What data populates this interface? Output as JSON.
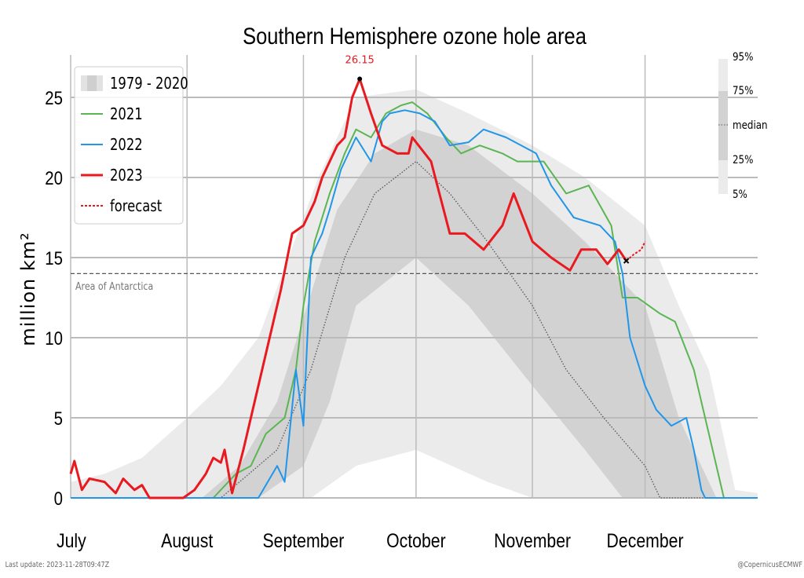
{
  "chart_data": {
    "type": "line",
    "title": "Southern Hemisphere ozone hole area",
    "ylabel": "million km²",
    "xlabel": "",
    "xlim": [
      "07-01",
      "12-31"
    ],
    "ylim": [
      -1.3,
      28.3
    ],
    "yticks": [
      0,
      5,
      10,
      15,
      20,
      25
    ],
    "xticks": [
      {
        "date": "07-01",
        "label": "July"
      },
      {
        "date": "08-01",
        "label": "August"
      },
      {
        "date": "09-01",
        "label": "September"
      },
      {
        "date": "10-01",
        "label": "October"
      },
      {
        "date": "11-01",
        "label": "November"
      },
      {
        "date": "12-01",
        "label": "December"
      }
    ],
    "grid": true,
    "reference_line": {
      "value": 14,
      "label": "Area of Antarctica"
    },
    "peak_annotation": {
      "date": "09-16",
      "value": 26.15,
      "label": "26.15"
    },
    "climatology": {
      "name": "1979 - 2020",
      "p95": [
        [
          "07-01",
          1
        ],
        [
          "07-10",
          1.5
        ],
        [
          "07-20",
          2.5
        ],
        [
          "08-01",
          5
        ],
        [
          "08-10",
          7
        ],
        [
          "08-20",
          10
        ],
        [
          "08-28",
          15
        ],
        [
          "09-05",
          20
        ],
        [
          "09-15",
          25
        ],
        [
          "10-01",
          25.5
        ],
        [
          "10-15",
          24
        ],
        [
          "11-01",
          22
        ],
        [
          "11-15",
          20
        ],
        [
          "12-01",
          17
        ],
        [
          "12-10",
          12
        ],
        [
          "12-18",
          8
        ],
        [
          "12-25",
          0.5
        ],
        [
          "12-31",
          0.3
        ]
      ],
      "p75": [
        [
          "07-01",
          0
        ],
        [
          "08-05",
          0
        ],
        [
          "08-15",
          2
        ],
        [
          "08-25",
          6
        ],
        [
          "09-02",
          12
        ],
        [
          "09-10",
          18
        ],
        [
          "09-20",
          21.5
        ],
        [
          "10-01",
          23
        ],
        [
          "10-15",
          22
        ],
        [
          "11-01",
          19
        ],
        [
          "11-15",
          16
        ],
        [
          "12-01",
          12
        ],
        [
          "12-10",
          5
        ],
        [
          "12-20",
          0
        ],
        [
          "12-31",
          0
        ]
      ],
      "median": [
        [
          "07-01",
          0
        ],
        [
          "08-10",
          0
        ],
        [
          "08-15",
          1
        ],
        [
          "08-25",
          3
        ],
        [
          "09-03",
          8
        ],
        [
          "09-12",
          15
        ],
        [
          "09-20",
          19
        ],
        [
          "10-01",
          21
        ],
        [
          "10-10",
          19
        ],
        [
          "10-20",
          16
        ],
        [
          "11-01",
          12
        ],
        [
          "11-10",
          8
        ],
        [
          "11-20",
          5
        ],
        [
          "12-01",
          2
        ],
        [
          "12-05",
          0
        ],
        [
          "12-31",
          0
        ]
      ],
      "p25": [
        [
          "07-01",
          0
        ],
        [
          "08-20",
          0
        ],
        [
          "09-01",
          2
        ],
        [
          "09-08",
          6
        ],
        [
          "09-15",
          12
        ],
        [
          "10-01",
          15
        ],
        [
          "10-15",
          12
        ],
        [
          "11-01",
          7
        ],
        [
          "11-15",
          3
        ],
        [
          "11-25",
          0
        ],
        [
          "12-31",
          0
        ]
      ],
      "p05": [
        [
          "07-01",
          0
        ],
        [
          "09-03",
          0
        ],
        [
          "09-15",
          2
        ],
        [
          "10-01",
          3
        ],
        [
          "10-20",
          1
        ],
        [
          "11-01",
          0
        ],
        [
          "12-31",
          0
        ]
      ]
    },
    "series": [
      {
        "name": "2021",
        "color": "#5ab552",
        "values": [
          [
            "07-01",
            0
          ],
          [
            "08-08",
            0
          ],
          [
            "08-14",
            1.5
          ],
          [
            "08-18",
            2
          ],
          [
            "08-22",
            4
          ],
          [
            "08-27",
            5
          ],
          [
            "08-30",
            8
          ],
          [
            "09-01",
            12
          ],
          [
            "09-04",
            16
          ],
          [
            "09-08",
            19
          ],
          [
            "09-12",
            21.5
          ],
          [
            "09-15",
            23
          ],
          [
            "09-19",
            22.5
          ],
          [
            "09-23",
            24
          ],
          [
            "09-27",
            24.5
          ],
          [
            "09-30",
            24.7
          ],
          [
            "10-04",
            24
          ],
          [
            "10-09",
            22.5
          ],
          [
            "10-13",
            21.5
          ],
          [
            "10-18",
            22
          ],
          [
            "10-24",
            21.5
          ],
          [
            "10-28",
            21
          ],
          [
            "11-04",
            21
          ],
          [
            "11-10",
            19
          ],
          [
            "11-16",
            19.5
          ],
          [
            "11-22",
            17
          ],
          [
            "11-25",
            12.5
          ],
          [
            "11-29",
            12.5
          ],
          [
            "12-05",
            11.5
          ],
          [
            "12-09",
            11
          ],
          [
            "12-14",
            8
          ],
          [
            "12-18",
            4
          ],
          [
            "12-21",
            1
          ],
          [
            "12-22",
            0
          ],
          [
            "12-31",
            0
          ]
        ]
      },
      {
        "name": "2022",
        "color": "#2196e8",
        "values": [
          [
            "07-01",
            0
          ],
          [
            "08-20",
            0
          ],
          [
            "08-25",
            2
          ],
          [
            "08-27",
            1
          ],
          [
            "08-30",
            8
          ],
          [
            "09-01",
            4.5
          ],
          [
            "09-03",
            15
          ],
          [
            "09-06",
            16.5
          ],
          [
            "09-08",
            18
          ],
          [
            "09-11",
            20.5
          ],
          [
            "09-15",
            22.5
          ],
          [
            "09-19",
            21
          ],
          [
            "09-22",
            23.5
          ],
          [
            "09-24",
            24
          ],
          [
            "09-28",
            24.2
          ],
          [
            "10-02",
            24
          ],
          [
            "10-06",
            23.5
          ],
          [
            "10-10",
            22
          ],
          [
            "10-15",
            22.2
          ],
          [
            "10-19",
            23
          ],
          [
            "10-25",
            22.5
          ],
          [
            "11-02",
            21.5
          ],
          [
            "11-06",
            19.5
          ],
          [
            "11-12",
            17.5
          ],
          [
            "11-19",
            17
          ],
          [
            "11-23",
            16
          ],
          [
            "11-25",
            14
          ],
          [
            "11-27",
            10
          ],
          [
            "12-01",
            7
          ],
          [
            "12-04",
            5.5
          ],
          [
            "12-08",
            4.5
          ],
          [
            "12-12",
            5
          ],
          [
            "12-14",
            3
          ],
          [
            "12-16",
            0.5
          ],
          [
            "12-17",
            0
          ],
          [
            "12-31",
            0
          ]
        ]
      },
      {
        "name": "2023",
        "color": "#e8191f",
        "values": [
          [
            "07-01",
            1.5
          ],
          [
            "07-02",
            2.3
          ],
          [
            "07-04",
            0.5
          ],
          [
            "07-06",
            1.2
          ],
          [
            "07-10",
            1.0
          ],
          [
            "07-13",
            0.3
          ],
          [
            "07-15",
            1.2
          ],
          [
            "07-18",
            0.5
          ],
          [
            "07-20",
            0.8
          ],
          [
            "07-22",
            0
          ],
          [
            "07-31",
            0
          ],
          [
            "08-03",
            0.5
          ],
          [
            "08-06",
            1.5
          ],
          [
            "08-08",
            2.5
          ],
          [
            "08-10",
            2.2
          ],
          [
            "08-11",
            3
          ],
          [
            "08-13",
            0.3
          ],
          [
            "08-16",
            3
          ],
          [
            "08-20",
            7
          ],
          [
            "08-23",
            10
          ],
          [
            "08-26",
            13
          ],
          [
            "08-29",
            16.5
          ],
          [
            "09-01",
            17
          ],
          [
            "09-04",
            18.5
          ],
          [
            "09-06",
            20
          ],
          [
            "09-08",
            21
          ],
          [
            "09-10",
            22
          ],
          [
            "09-12",
            22.5
          ],
          [
            "09-14",
            25
          ],
          [
            "09-16",
            26.15
          ],
          [
            "09-19",
            24
          ],
          [
            "09-22",
            22
          ],
          [
            "09-26",
            21.5
          ],
          [
            "09-29",
            21.5
          ],
          [
            "09-30",
            22.5
          ],
          [
            "10-05",
            21
          ],
          [
            "10-10",
            16.5
          ],
          [
            "10-14",
            16.5
          ],
          [
            "10-19",
            15.5
          ],
          [
            "10-24",
            17
          ],
          [
            "10-27",
            19
          ],
          [
            "11-01",
            16
          ],
          [
            "11-06",
            15
          ],
          [
            "11-11",
            14.2
          ],
          [
            "11-14",
            15.5
          ],
          [
            "11-18",
            15.5
          ],
          [
            "11-21",
            14.6
          ],
          [
            "11-24",
            15.5
          ],
          [
            "11-26",
            14.8
          ]
        ]
      },
      {
        "name": "forecast",
        "color": "#e8191f",
        "dashed": true,
        "values": [
          [
            "11-26",
            14.8
          ],
          [
            "11-28",
            15.2
          ],
          [
            "11-30",
            15.5
          ],
          [
            "12-01",
            16
          ]
        ]
      }
    ],
    "legend": {
      "placement": "top-left",
      "entries": [
        "1979 - 2020",
        "2021",
        "2022",
        "2023",
        "forecast"
      ]
    },
    "percentile_legend": {
      "placement": "top-right",
      "labels": [
        "95%",
        "75%",
        "median",
        "25%",
        "5%"
      ]
    }
  },
  "footer": {
    "last_update": "Last update: 2023-11-28T09:47Z",
    "credit": "@CopernicusECMWF"
  }
}
